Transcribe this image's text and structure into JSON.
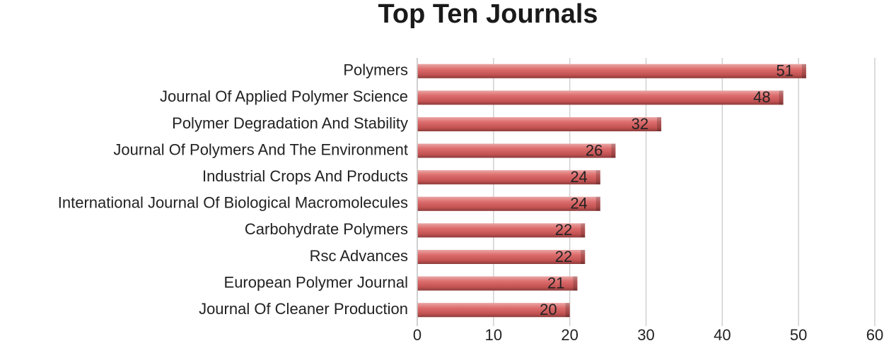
{
  "chart_data": {
    "type": "bar",
    "orientation": "horizontal",
    "title": "Top Ten Journals",
    "categories": [
      "Polymers",
      "Journal Of Applied Polymer Science",
      "Polymer Degradation And Stability",
      "Journal Of Polymers And The Environment",
      "Industrial Crops And Products",
      "International Journal Of Biological Macromolecules",
      "Carbohydrate Polymers",
      "Rsc Advances",
      "European Polymer Journal",
      "Journal Of Cleaner Production"
    ],
    "values": [
      51,
      48,
      32,
      26,
      24,
      24,
      22,
      22,
      21,
      20
    ],
    "color": "#d95c5c",
    "xlim": [
      0,
      60
    ],
    "xticks": [
      0,
      10,
      20,
      30,
      40,
      50,
      60
    ],
    "grid": true
  }
}
